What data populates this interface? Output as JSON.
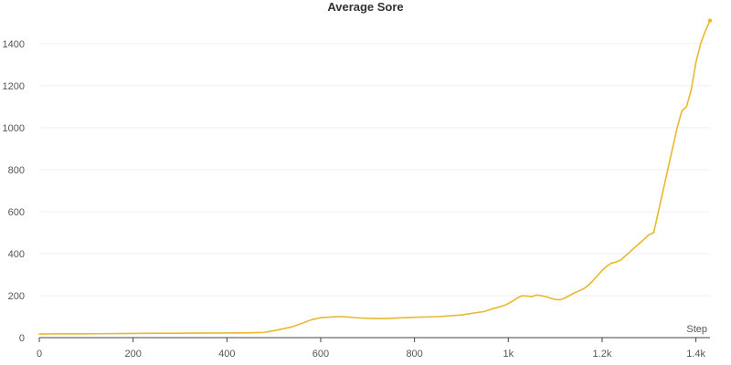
{
  "chart_data": {
    "type": "line",
    "title": "Average Sore",
    "xlabel": "Step",
    "ylabel": "",
    "xlim": [
      0,
      1430
    ],
    "ylim": [
      0,
      1530
    ],
    "x_ticks": [
      0,
      200,
      400,
      600,
      800,
      1000,
      1200,
      1400
    ],
    "x_tick_labels": [
      "0",
      "200",
      "400",
      "600",
      "800",
      "1k",
      "1.2k",
      "1.4k"
    ],
    "y_ticks": [
      0,
      200,
      400,
      600,
      800,
      1000,
      1200,
      1400
    ],
    "y_tick_labels": [
      "0",
      "200",
      "400",
      "600",
      "800",
      "1000",
      "1200",
      "1400"
    ],
    "grid": "horizontal",
    "legend": "none",
    "color": "#e8b82e",
    "series": [
      {
        "x": [
          0,
          50,
          100,
          150,
          200,
          250,
          300,
          350,
          400,
          450,
          480,
          500,
          520,
          540,
          560,
          580,
          600,
          620,
          640,
          660,
          680,
          700,
          720,
          740,
          760,
          780,
          800,
          850,
          900,
          950,
          970,
          990,
          1000,
          1010,
          1020,
          1030,
          1040,
          1050,
          1060,
          1070,
          1080,
          1090,
          1100,
          1110,
          1120,
          1130,
          1140,
          1150,
          1160,
          1170,
          1180,
          1190,
          1200,
          1210,
          1220,
          1230,
          1240,
          1250,
          1260,
          1270,
          1280,
          1290,
          1300,
          1310,
          1320,
          1330,
          1340,
          1350,
          1360,
          1370,
          1380,
          1390,
          1400,
          1410,
          1420,
          1430
        ],
        "y": [
          17,
          18,
          18,
          19,
          20,
          21,
          21,
          22,
          22,
          23,
          25,
          33,
          42,
          52,
          68,
          85,
          95,
          98,
          100,
          98,
          94,
          92,
          91,
          91,
          93,
          95,
          97,
          100,
          108,
          125,
          140,
          152,
          162,
          175,
          190,
          200,
          198,
          195,
          203,
          200,
          195,
          188,
          182,
          180,
          188,
          200,
          212,
          222,
          232,
          248,
          270,
          295,
          320,
          340,
          355,
          360,
          370,
          390,
          410,
          430,
          450,
          470,
          490,
          500,
          600,
          700,
          800,
          900,
          1000,
          1080,
          1100,
          1180,
          1310,
          1400,
          1460,
          1510
        ]
      }
    ]
  }
}
